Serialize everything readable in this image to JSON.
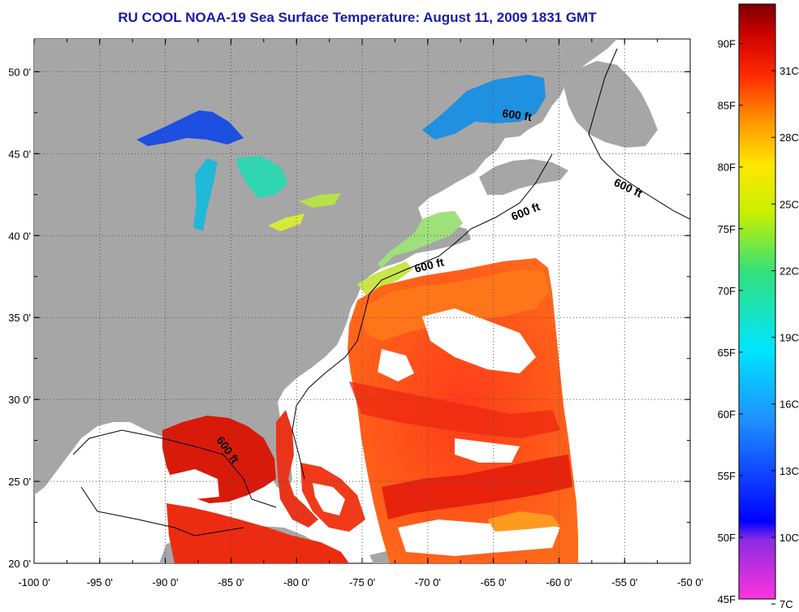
{
  "title": "RU COOL  NOAA-19  Sea Surface Temperature:  August 11, 2009 1831 GMT",
  "map": {
    "lon_ticks": [
      "-100 0'",
      "-95 0'",
      "-90 0'",
      "-85 0'",
      "-80 0'",
      "-75 0'",
      "-70 0'",
      "-65 0'",
      "-60 0'",
      "-55 0'",
      "-50 0'"
    ],
    "lat_ticks": [
      "20 0'",
      "25 0'",
      "30 0'",
      "35 0'",
      "40 0'",
      "45 0'",
      "50 0'"
    ],
    "lon_range": [
      -100,
      -50
    ],
    "lat_range": [
      20,
      52
    ],
    "contour_label": "600 ft",
    "colors": {
      "land": "#a6a6a6",
      "no_data": "#ffffff",
      "grid": "#555555"
    }
  },
  "colorbar": {
    "fahrenheit": [
      "90F",
      "85F",
      "80F",
      "75F",
      "70F",
      "65F",
      "60F",
      "55F",
      "50F",
      "45F"
    ],
    "celsius": [
      "31C",
      "28C",
      "25C",
      "22C",
      "19C",
      "16C",
      "13C",
      "10C",
      "7C"
    ]
  }
}
